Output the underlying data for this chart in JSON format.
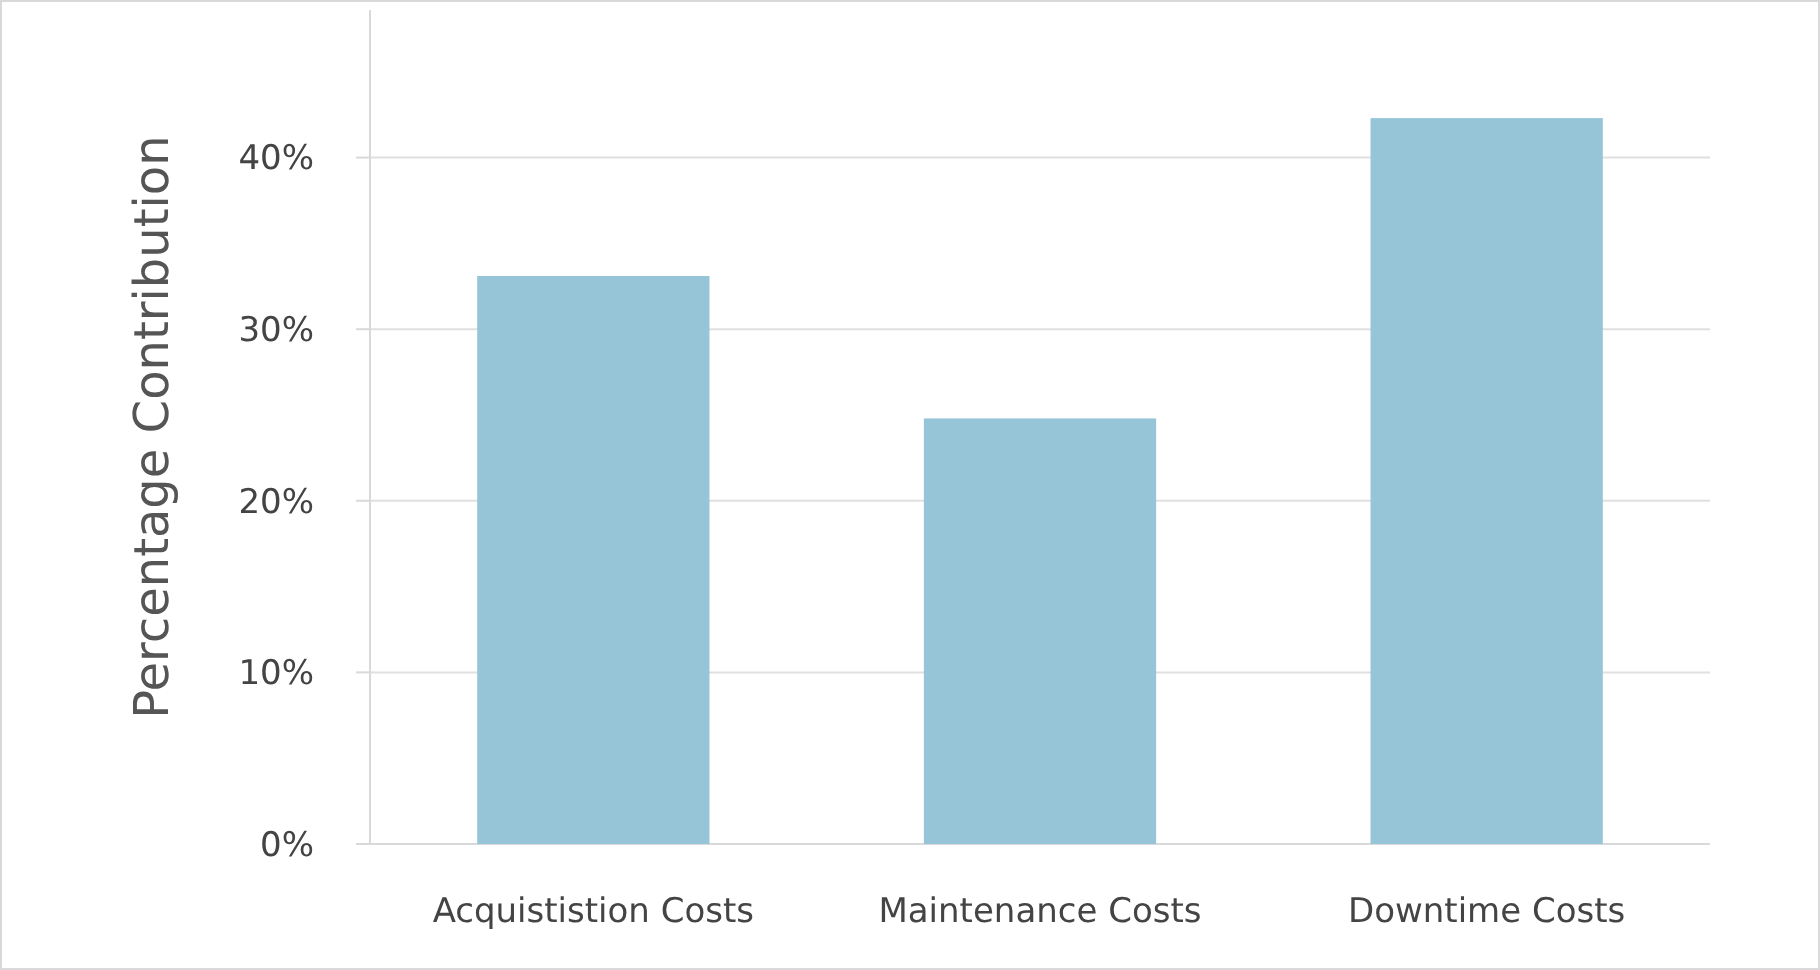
{
  "chart_data": {
    "type": "bar",
    "ylabel": "Percentage Contribution",
    "categories": [
      "Acquististion Costs",
      "Maintenance Costs",
      "Downtime Costs"
    ],
    "values": [
      33.1,
      24.8,
      42.3
    ],
    "color": "#95c5d7",
    "ylim": [
      0,
      48.6
    ],
    "yticks": [
      {
        "value": 0,
        "label": "0%"
      },
      {
        "value": 10,
        "label": "10%"
      },
      {
        "value": 20,
        "label": "20%"
      },
      {
        "value": 30,
        "label": "30%"
      },
      {
        "value": 40,
        "label": "40%"
      }
    ],
    "grid": "y"
  }
}
